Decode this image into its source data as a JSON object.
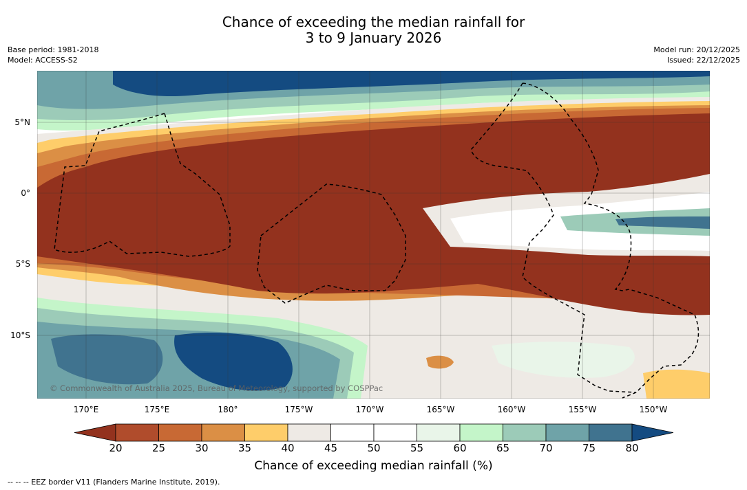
{
  "title": {
    "line1": "Chance of exceeding the median rainfall for",
    "line2": "3 to 9 January 2026"
  },
  "meta": {
    "base_period": "Base period: 1981-2018",
    "model": "Model: ACCESS-S2",
    "model_run": "Model run: 20/12/2025",
    "issued": "Issued: 22/12/2025"
  },
  "map": {
    "lat_labels": [
      "5°N",
      "0°",
      "5°S",
      "10°S"
    ],
    "lon_labels": [
      "170°E",
      "175°E",
      "180°",
      "175°W",
      "170°W",
      "165°W",
      "160°W",
      "155°W",
      "150°W"
    ],
    "copyright": "© Commonwealth of Australia 2025, Bureau of Meteorology, supported by COSPPac"
  },
  "colorbar": {
    "ticks": [
      "20",
      "25",
      "30",
      "35",
      "40",
      "45",
      "50",
      "55",
      "60",
      "65",
      "70",
      "75",
      "80"
    ],
    "colors": [
      "#93321e",
      "#b04c2c",
      "#c86934",
      "#db8f45",
      "#fecd6a",
      "#eeeae5",
      "#ffffff",
      "#ffffff",
      "#e9f5e9",
      "#c4f5c9",
      "#9ccbb8",
      "#6fa3a8",
      "#40738f",
      "#144b81"
    ],
    "label": "Chance of exceeding median rainfall (%)"
  },
  "footnote": "--  --  -- EEZ border V11 (Flanders Marine Institute, 2019)."
}
